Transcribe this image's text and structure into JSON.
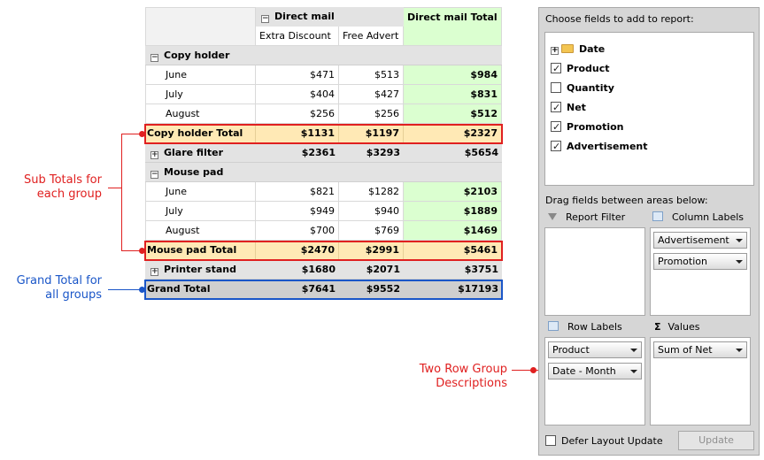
{
  "header": {
    "direct_mail": "Direct mail",
    "direct_mail_total": "Direct mail Total",
    "extra_discount": "Extra Discount",
    "free_advert": "Free Advert"
  },
  "rows": [
    {
      "label": "Copy holder",
      "type": "group",
      "sign": "−",
      "v1": "",
      "v2": "",
      "v3": ""
    },
    {
      "label": "June",
      "type": "data",
      "v1": "$471",
      "v2": "$513",
      "v3": "$984"
    },
    {
      "label": "July",
      "type": "data",
      "v1": "$404",
      "v2": "$427",
      "v3": "$831"
    },
    {
      "label": "August",
      "type": "data",
      "v1": "$256",
      "v2": "$256",
      "v3": "$512"
    },
    {
      "label": "Copy holder Total",
      "type": "sub",
      "v1": "$1131",
      "v2": "$1197",
      "v3": "$2327"
    },
    {
      "label": "Glare filter",
      "type": "group",
      "sign": "+",
      "v1": "$2361",
      "v2": "$3293",
      "v3": "$5654"
    },
    {
      "label": "Mouse pad",
      "type": "group",
      "sign": "−",
      "v1": "",
      "v2": "",
      "v3": ""
    },
    {
      "label": "June",
      "type": "data",
      "v1": "$821",
      "v2": "$1282",
      "v3": "$2103"
    },
    {
      "label": "July",
      "type": "data",
      "v1": "$949",
      "v2": "$940",
      "v3": "$1889"
    },
    {
      "label": "August",
      "type": "data",
      "v1": "$700",
      "v2": "$769",
      "v3": "$1469"
    },
    {
      "label": "Mouse pad Total",
      "type": "sub",
      "v1": "$2470",
      "v2": "$2991",
      "v3": "$5461"
    },
    {
      "label": "Printer stand",
      "type": "group",
      "sign": "+",
      "v1": "$1680",
      "v2": "$2071",
      "v3": "$3751"
    },
    {
      "label": "Grand Total",
      "type": "grand",
      "v1": "$7641",
      "v2": "$9552",
      "v3": "$17193"
    }
  ],
  "annotations": {
    "subtotals": "Sub Totals for each group",
    "grand_total": "Grand Total for all groups",
    "two_row": "Two Row Group Descriptions"
  },
  "colors": {
    "red": "#e02020",
    "blue": "#1a56c8"
  },
  "panel": {
    "choose_title": "Choose fields to add to report:",
    "fields": [
      {
        "label": "Date",
        "kind": "folder",
        "checked": false
      },
      {
        "label": "Product",
        "kind": "checkbox",
        "checked": true
      },
      {
        "label": "Quantity",
        "kind": "checkbox",
        "checked": false
      },
      {
        "label": "Net",
        "kind": "checkbox",
        "checked": true
      },
      {
        "label": "Promotion",
        "kind": "checkbox",
        "checked": true
      },
      {
        "label": "Advertisement",
        "kind": "checkbox",
        "checked": true
      }
    ],
    "drag_title": "Drag fields between areas below:",
    "report_filter": "Report Filter",
    "column_labels": "Column Labels",
    "row_labels": "Row Labels",
    "values": "Values",
    "column_items": [
      "Advertisement",
      "Promotion"
    ],
    "row_items": [
      "Product",
      "Date - Month"
    ],
    "value_items": [
      "Sum of Net"
    ],
    "defer": "Defer Layout Update",
    "update": "Update"
  }
}
